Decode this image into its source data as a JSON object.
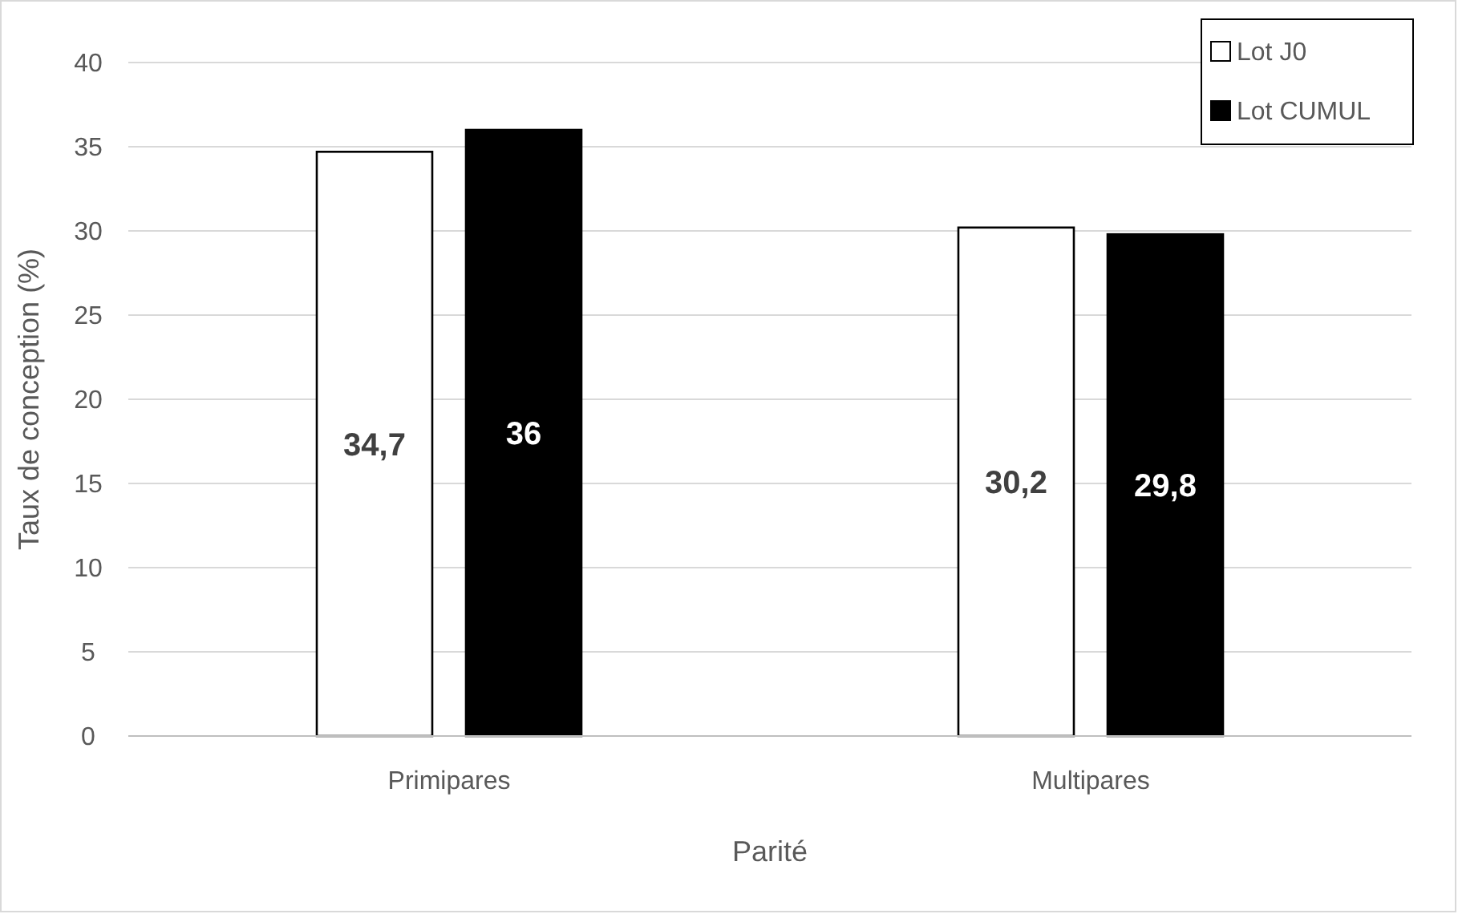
{
  "chart_data": {
    "type": "bar",
    "xlabel": "Parité",
    "ylabel": "Taux de conception (%)",
    "categories": [
      "Primipares",
      "Multipares"
    ],
    "series": [
      {
        "name": "Lot J0",
        "color": "#ffffff",
        "values": [
          34.7,
          30.2
        ],
        "value_labels": [
          "34,7",
          "30,2"
        ]
      },
      {
        "name": "Lot CUMUL",
        "color": "#000000",
        "values": [
          36,
          29.8
        ],
        "value_labels": [
          "36",
          "29,8"
        ]
      }
    ],
    "ylim": [
      0,
      40
    ],
    "yticks": [
      0,
      5,
      10,
      15,
      20,
      25,
      30,
      35,
      40
    ],
    "grid": "y",
    "legend": "top right"
  }
}
